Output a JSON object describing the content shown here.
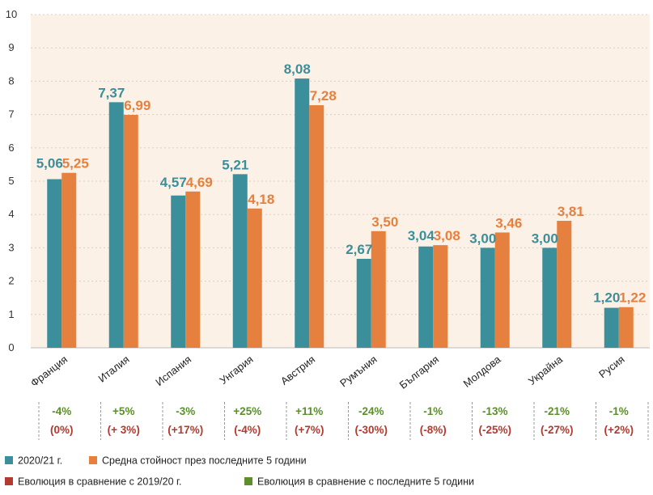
{
  "chart_data": {
    "type": "bar",
    "categories": [
      "Франция",
      "Италия",
      "Испания",
      "Унгария",
      "Австрия",
      "Румъния",
      "България",
      "Молдова",
      "Украйна",
      "Русия"
    ],
    "series": [
      {
        "name": "2020/21 г.",
        "values": [
          5.06,
          7.37,
          4.57,
          5.21,
          8.08,
          2.67,
          3.04,
          3.0,
          3.0,
          1.2
        ],
        "labels": [
          "5,06",
          "7,37",
          "4,57",
          "5,21",
          "8,08",
          "2,67",
          "3,04",
          "3,00",
          "3,00",
          "1,20"
        ]
      },
      {
        "name": "Средна стойност през последните 5 години",
        "values": [
          5.25,
          6.99,
          4.69,
          4.18,
          7.28,
          3.5,
          3.08,
          3.46,
          3.81,
          1.22
        ],
        "labels": [
          "5,25",
          "6,99",
          "4,69",
          "4,18",
          "7,28",
          "3,50",
          "3,08",
          "3,46",
          "3,81",
          "1,22"
        ]
      }
    ],
    "ylim": [
      0,
      10
    ],
    "yticks": [
      "0",
      "1",
      "2",
      "3",
      "4",
      "5",
      "6",
      "7",
      "8",
      "9",
      "10"
    ],
    "grid": true,
    "evolution_5y": [
      "-4%",
      "+5%",
      "-3%",
      "+25%",
      "+11%",
      "-24%",
      "-1%",
      "-13%",
      "-21%",
      "-1%"
    ],
    "evolution_prev_year": [
      "(0%)",
      "(+ 3%)",
      "(+17%)",
      "(-4%)",
      "(+7%)",
      "(-30%)",
      "(-8%)",
      "(-25%)",
      "(-27%)",
      "(+2%)"
    ],
    "legend": [
      {
        "label": "2020/21 г.",
        "color": "#3a8f9a"
      },
      {
        "label": "Средна стойност през последните 5 години",
        "color": "#e6803f"
      },
      {
        "label": "Еволюция в сравнение с 2019/20 г.",
        "color": "#b23a2e"
      },
      {
        "label": "Еволюция в сравнение с последните 5 години",
        "color": "#5a8f2a"
      }
    ],
    "colors": {
      "series1": "#3a8f9a",
      "series2": "#e6803f",
      "plot_background": "#fcf1e6",
      "gridline": "#d8cfc5",
      "evo_positive_text": "#5a8f2a",
      "evo_negative_text": "#b23a2e"
    }
  }
}
